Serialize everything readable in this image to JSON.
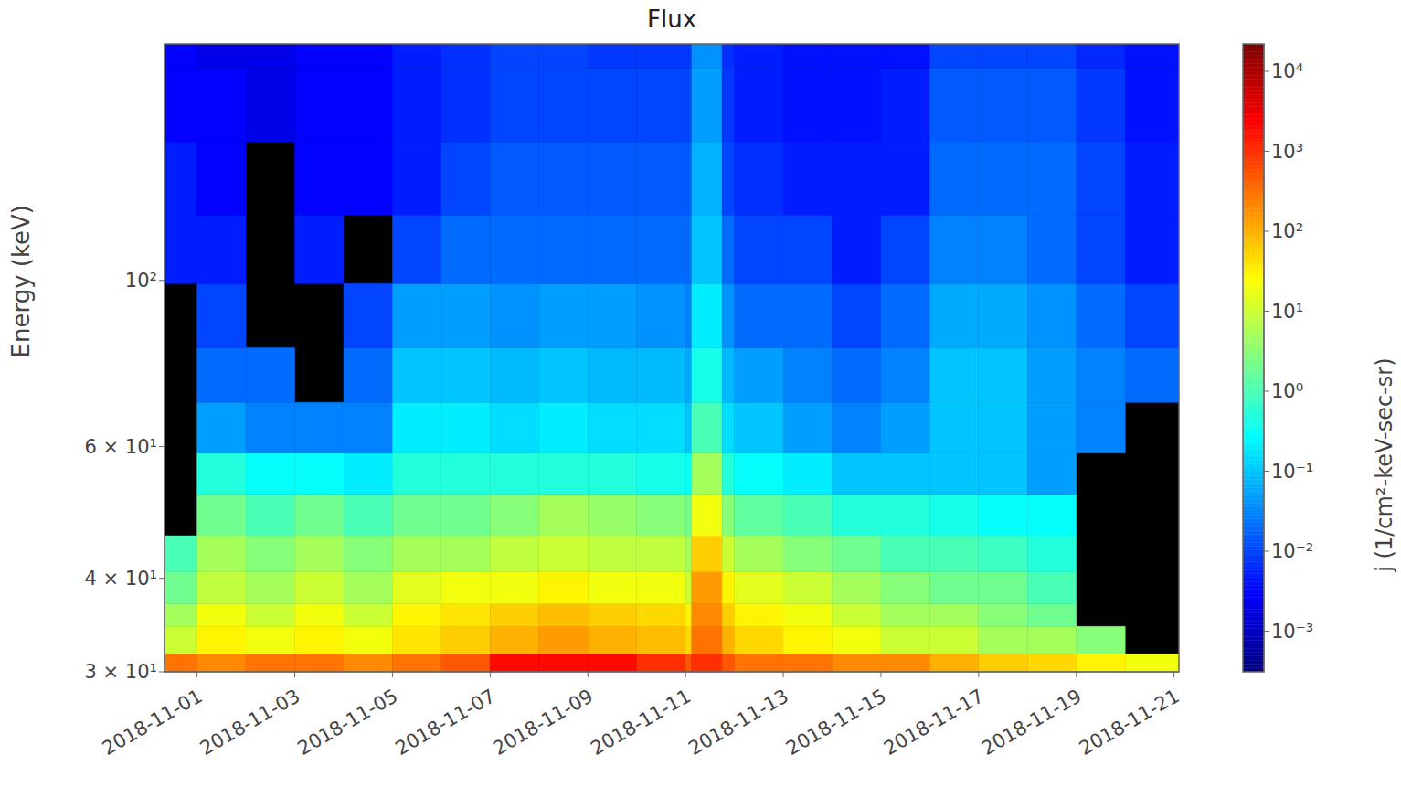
{
  "chart_data": {
    "type": "heatmap",
    "title": "Flux",
    "y_label": "Energy (keV)",
    "log": "y",
    "xlim": [
      1540972800000,
      1542767040000
    ],
    "xticks": [
      {
        "value": 1541030400000,
        "label": "2018-11-01"
      },
      {
        "value": 1541203200000,
        "label": "2018-11-03"
      },
      {
        "value": 1541376000000,
        "label": "2018-11-05"
      },
      {
        "value": 1541548800000,
        "label": "2018-11-07"
      },
      {
        "value": 1541721600000,
        "label": "2018-11-09"
      },
      {
        "value": 1541894400000,
        "label": "2018-11-11"
      },
      {
        "value": 1542067200000,
        "label": "2018-11-13"
      },
      {
        "value": 1542240000000,
        "label": "2018-11-15"
      },
      {
        "value": 1542412800000,
        "label": "2018-11-17"
      },
      {
        "value": 1542585600000,
        "label": "2018-11-19"
      },
      {
        "value": 1542758400000,
        "label": "2018-11-21"
      }
    ],
    "ylim": [
      30,
      207
    ],
    "yticks": [
      {
        "value": 30,
        "label": "3 × 10¹"
      },
      {
        "value": 40,
        "label": "4 × 10¹"
      },
      {
        "value": 60,
        "label": "6 × 10¹"
      },
      {
        "value": 100,
        "label": "10²"
      }
    ],
    "x_edges": [
      1540972800000,
      1541030400000,
      1541116800000,
      1541203200000,
      1541289600000,
      1541376000000,
      1541462400000,
      1541548800000,
      1541635200000,
      1541721600000,
      1541808000000,
      1541894400000,
      1541905200000,
      1541959200000,
      1541980800000,
      1542067200000,
      1542153600000,
      1542240000000,
      1542326400000,
      1542412800000,
      1542499200000,
      1542585600000,
      1542672000000,
      1542767040000
    ],
    "y_edges": [
      30,
      31.7,
      34.5,
      37,
      40.8,
      45.6,
      51.8,
      58.8,
      68.7,
      81.3,
      99,
      122.3,
      153.1,
      192.3,
      207
    ],
    "values": [
      [
        300,
        200,
        300,
        300,
        200,
        300,
        500,
        2000,
        2000,
        2000,
        1000,
        500,
        1000,
        500,
        300,
        300,
        200,
        200,
        100,
        60,
        50,
        30,
        20
      ],
      [
        10,
        30,
        20,
        30,
        20,
        40,
        60,
        100,
        150,
        100,
        80,
        50,
        300,
        100,
        50,
        30,
        20,
        10,
        10,
        5,
        5,
        3,
        null
      ],
      [
        5,
        20,
        10,
        20,
        10,
        30,
        40,
        60,
        80,
        60,
        50,
        30,
        200,
        60,
        30,
        20,
        10,
        5,
        5,
        3,
        2,
        null,
        null
      ],
      [
        2,
        8,
        5,
        10,
        5,
        15,
        20,
        20,
        30,
        20,
        20,
        10,
        150,
        30,
        15,
        10,
        5,
        3,
        2,
        2,
        1,
        null,
        null
      ],
      [
        1,
        5,
        3,
        5,
        3,
        5,
        5,
        8,
        10,
        8,
        8,
        5,
        60,
        10,
        5,
        3,
        2,
        1,
        1,
        0.8,
        0.5,
        null,
        null
      ],
      [
        null,
        2,
        1,
        2,
        1,
        2,
        2,
        3,
        5,
        4,
        3,
        2,
        20,
        3,
        1.5,
        1,
        0.5,
        0.5,
        0.4,
        0.3,
        0.3,
        null,
        null
      ],
      [
        null,
        0.5,
        0.3,
        0.3,
        0.2,
        0.5,
        0.5,
        0.5,
        0.5,
        0.5,
        0.4,
        0.3,
        5,
        0.5,
        0.3,
        0.2,
        0.1,
        0.1,
        0.1,
        0.1,
        0.05,
        null,
        null
      ],
      [
        null,
        0.05,
        0.03,
        0.03,
        0.03,
        0.2,
        0.2,
        0.15,
        0.2,
        0.15,
        0.15,
        0.1,
        1,
        0.15,
        0.1,
        0.05,
        0.03,
        0.05,
        0.1,
        0.1,
        0.05,
        0.03,
        null
      ],
      [
        null,
        0.02,
        0.02,
        null,
        0.02,
        0.1,
        0.1,
        0.08,
        0.1,
        0.08,
        0.08,
        0.06,
        0.4,
        0.08,
        0.05,
        0.03,
        0.02,
        0.03,
        0.1,
        0.1,
        0.05,
        0.03,
        0.02
      ],
      [
        null,
        0.01,
        null,
        null,
        0.01,
        0.05,
        0.05,
        0.04,
        0.05,
        0.05,
        0.04,
        0.03,
        0.2,
        0.04,
        0.02,
        0.02,
        0.01,
        0.02,
        0.06,
        0.06,
        0.04,
        0.02,
        0.01
      ],
      [
        0.005,
        0.005,
        null,
        0.005,
        null,
        0.01,
        0.02,
        0.02,
        0.02,
        0.02,
        0.02,
        0.02,
        0.1,
        0.02,
        0.01,
        0.01,
        0.005,
        0.01,
        0.03,
        0.03,
        0.02,
        0.01,
        0.005
      ],
      [
        0.005,
        0.003,
        null,
        0.003,
        0.003,
        0.005,
        0.01,
        0.015,
        0.015,
        0.015,
        0.015,
        0.015,
        0.07,
        0.01,
        0.007,
        0.005,
        0.005,
        0.005,
        0.02,
        0.02,
        0.02,
        0.01,
        0.005
      ],
      [
        0.003,
        0.003,
        0.002,
        0.003,
        0.003,
        0.005,
        0.007,
        0.01,
        0.01,
        0.01,
        0.01,
        0.01,
        0.05,
        0.008,
        0.005,
        0.004,
        0.004,
        0.005,
        0.015,
        0.015,
        0.015,
        0.008,
        0.004
      ],
      [
        0.003,
        0.002,
        0.002,
        0.003,
        0.003,
        0.005,
        0.007,
        0.01,
        0.01,
        0.008,
        0.008,
        0.008,
        0.04,
        0.007,
        0.005,
        0.004,
        0.004,
        0.004,
        0.01,
        0.01,
        0.01,
        0.006,
        0.004
      ]
    ],
    "colorbar": {
      "label": "j (1/cm²-keV-sec-sr)",
      "lim": [
        0.00031,
        22000
      ],
      "ticks": [
        {
          "value": 0.001,
          "label": "10⁻³"
        },
        {
          "value": 0.01,
          "label": "10⁻²"
        },
        {
          "value": 0.1,
          "label": "10⁻¹"
        },
        {
          "value": 1,
          "label": "10⁰"
        },
        {
          "value": 10,
          "label": "10¹"
        },
        {
          "value": 100,
          "label": "10²"
        },
        {
          "value": 1000,
          "label": "10³"
        },
        {
          "value": 10000,
          "label": "10⁴"
        }
      ]
    }
  }
}
